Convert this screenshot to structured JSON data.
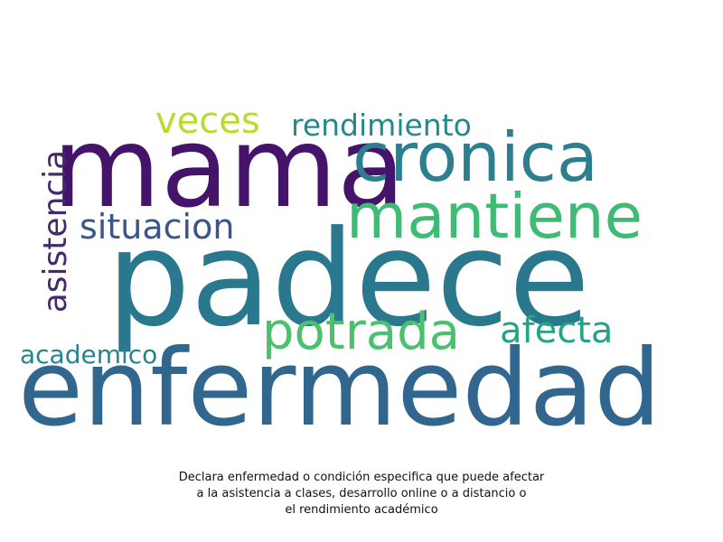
{
  "words": [
    {
      "text": "padece",
      "color": "#2a788e"
    },
    {
      "text": "enfermedad",
      "color": "#31668e"
    },
    {
      "text": "mama",
      "color": "#45136a"
    },
    {
      "text": "cronica",
      "color": "#2c7f8e"
    },
    {
      "text": "mantiene",
      "color": "#3dbc74"
    },
    {
      "text": "potrada",
      "color": "#4ac16d"
    },
    {
      "text": "situacion",
      "color": "#39568c"
    },
    {
      "text": "veces",
      "color": "#b5de2b"
    },
    {
      "text": "rendimiento",
      "color": "#23898e"
    },
    {
      "text": "afecta",
      "color": "#21a585"
    },
    {
      "text": "academico",
      "color": "#25858e"
    },
    {
      "text": "asistencia",
      "color": "#46286f"
    }
  ],
  "caption": [
    "Declara enfermedad o condición especifica que puede afectar",
    "a la asistencia a clases, desarrollo online o a distancio o",
    "el rendimiento académico"
  ]
}
